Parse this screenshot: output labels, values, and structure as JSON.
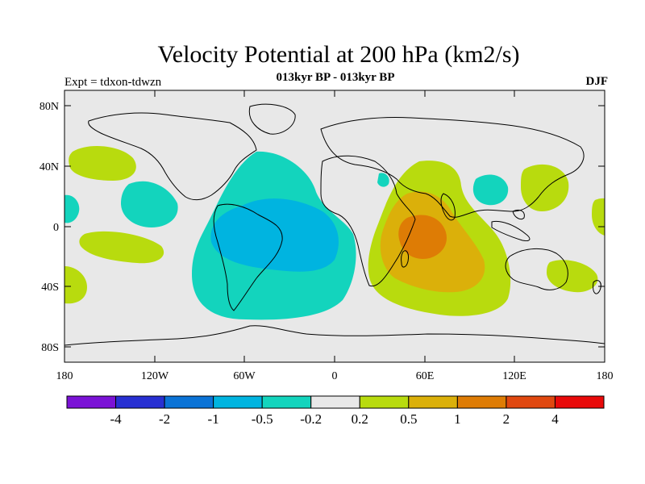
{
  "title": "Velocity Potential at 200 hPa (km2/s)",
  "subtitle": "013kyr BP - 013kyr BP",
  "left_label": "Expt = tdxon-tdwzn",
  "right_label": "DJF",
  "y_ticks": [
    "80N",
    "40N",
    "0",
    "40S",
    "80S"
  ],
  "x_ticks": [
    "180",
    "120W",
    "60W",
    "0",
    "60E",
    "120E",
    "180"
  ],
  "colorbar": {
    "colors": [
      "#7b12d6",
      "#2830d2",
      "#0b73d6",
      "#00b4e0",
      "#13d4bd",
      "#e8e8e8",
      "#b8db0e",
      "#dbb00a",
      "#de7c05",
      "#e04810",
      "#e80a0a"
    ],
    "labels": [
      "-4",
      "-2",
      "-1",
      "-0.5",
      "-0.2",
      "0.2",
      "0.5",
      "1",
      "2",
      "4"
    ]
  },
  "map": {
    "background_color": "#e8e8e8",
    "lat_range": [
      -90,
      90
    ],
    "lon_range": [
      -180,
      180
    ]
  }
}
